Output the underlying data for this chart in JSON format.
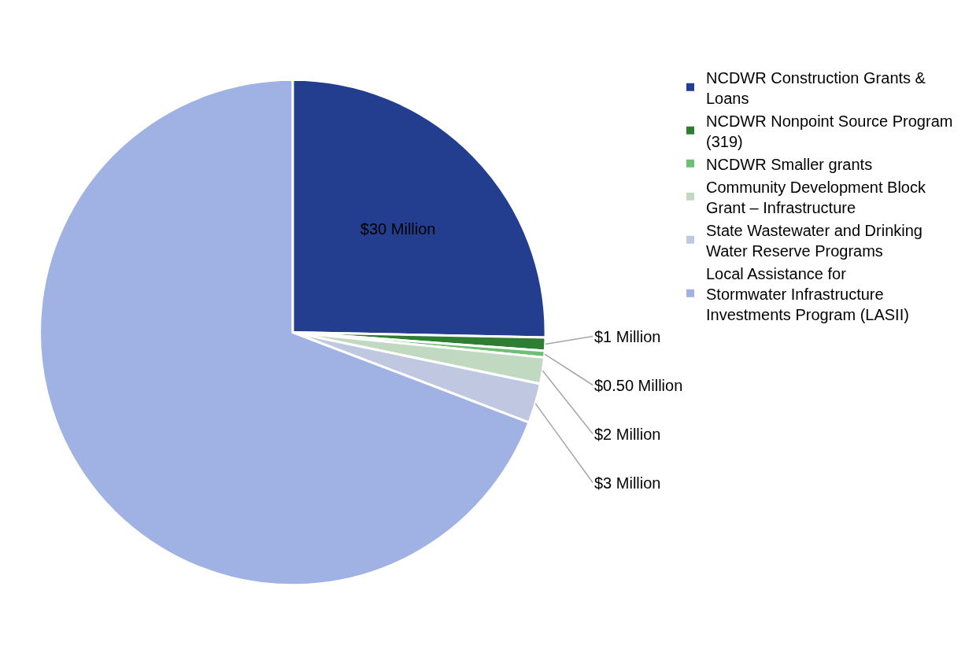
{
  "chart_data": {
    "type": "pie",
    "categories": [
      "NCDWR Construction Grants & Loans",
      "NCDWR Nonpoint Source Program (319)",
      "NCDWR Smaller grants",
      "Community Development Block Grant – Infrastructure",
      "State Wastewater and Drinking Water Reserve Programs",
      "Local Assistance for Stormwater Infrastructure Investments Program (LASII)"
    ],
    "values": [
      30,
      1,
      0.5,
      2,
      3,
      82
    ],
    "value_labels": [
      "$30 Million",
      "$1 Million",
      "$0.50 Million",
      "$2 Million",
      "$3 Million",
      null
    ],
    "colors": [
      "#233e8f",
      "#2e7d32",
      "#6dbf75",
      "#c1d9c1",
      "#bfc8e0",
      "#a0b2e4"
    ],
    "legend": "right"
  }
}
